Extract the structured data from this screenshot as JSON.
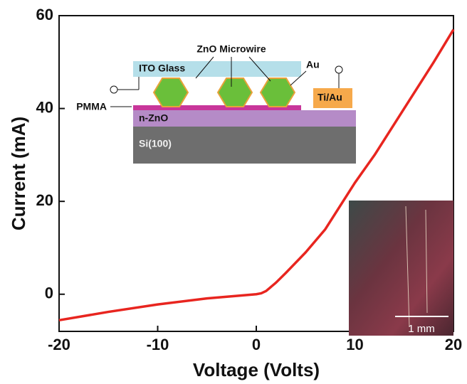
{
  "chart_data": {
    "type": "line",
    "x_label": "Voltage (Volts)",
    "y_label": "Current (mA)",
    "xlim": [
      -20,
      20
    ],
    "ylim": [
      -8,
      60
    ],
    "xticks": [
      -20,
      -10,
      0,
      10,
      20
    ],
    "yticks": [
      0,
      20,
      40,
      60
    ],
    "series": [
      {
        "color": "#e8251f",
        "x": [
          -20,
          -15,
          -10,
          -5,
          0,
          0.5,
          1,
          2,
          3,
          5,
          7,
          10,
          12,
          15,
          18,
          20
        ],
        "values": [
          -5.6,
          -3.8,
          -2.2,
          -0.9,
          0,
          0.2,
          0.7,
          2.5,
          4.6,
          9,
          14,
          24,
          30,
          40,
          50,
          57
        ]
      }
    ],
    "inset_labels": {
      "wire": "ZnO Microwire",
      "glass": "ITO Glass",
      "au": "Au",
      "tiau": "Ti/Au",
      "pmma": "PMMA",
      "nzno": "n-ZnO",
      "si": "Si(100)",
      "scale": "1 mm"
    }
  }
}
